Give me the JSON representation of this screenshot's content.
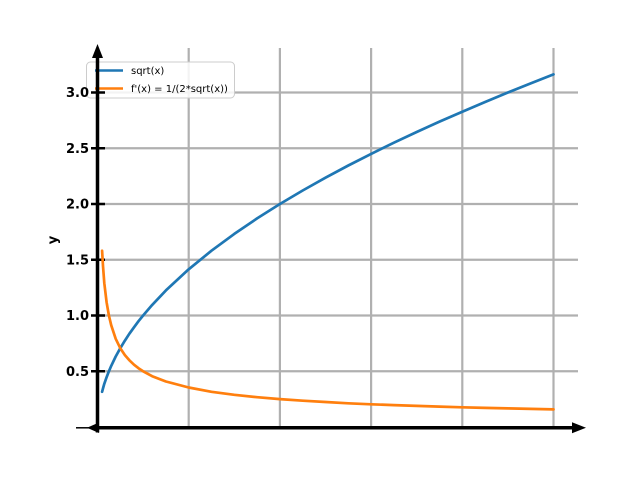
{
  "figure": {
    "background": "#ffffff",
    "axis_color": "#000000",
    "grid_color": "#b0b0b0",
    "legend": {
      "border_color": "#cccccc",
      "background": "#ffffff"
    }
  },
  "chart_data": {
    "type": "line",
    "title": "",
    "xlabel": "",
    "ylabel": "y",
    "xlim": [
      0,
      10.7
    ],
    "ylim": [
      0,
      3.45
    ],
    "xticks": [
      2,
      4,
      6,
      8,
      10
    ],
    "yticks": [
      0.5,
      1.0,
      1.5,
      2.0,
      2.5,
      3.0
    ],
    "ytick_labels": [
      "0.5",
      "1.0",
      "1.5",
      "2.0",
      "2.5",
      "3.0"
    ],
    "grid": true,
    "legend_position": "upper left",
    "x": [
      0.1,
      0.12,
      0.15,
      0.2,
      0.25,
      0.3,
      0.4,
      0.5,
      0.6,
      0.7,
      0.8,
      0.9,
      1.0,
      1.2,
      1.5,
      2.0,
      2.5,
      3.0,
      3.5,
      4.0,
      4.5,
      5.0,
      5.5,
      6.0,
      6.5,
      7.0,
      7.5,
      8.0,
      8.5,
      9.0,
      9.5,
      10.0
    ],
    "series": [
      {
        "name": "sqrt(x)",
        "color": "#1f77b4",
        "values": [
          0.316,
          0.346,
          0.387,
          0.447,
          0.5,
          0.548,
          0.632,
          0.707,
          0.775,
          0.837,
          0.894,
          0.949,
          1.0,
          1.095,
          1.225,
          1.414,
          1.581,
          1.732,
          1.871,
          2.0,
          2.121,
          2.236,
          2.345,
          2.449,
          2.55,
          2.646,
          2.739,
          2.828,
          2.915,
          3.0,
          3.082,
          3.162
        ]
      },
      {
        "name": "f'(x) = 1/(2*sqrt(x))",
        "color": "#ff7f0e",
        "values": [
          1.581,
          1.443,
          1.291,
          1.118,
          1.0,
          0.913,
          0.791,
          0.707,
          0.645,
          0.598,
          0.559,
          0.527,
          0.5,
          0.456,
          0.408,
          0.354,
          0.316,
          0.289,
          0.267,
          0.25,
          0.236,
          0.224,
          0.213,
          0.204,
          0.196,
          0.189,
          0.183,
          0.177,
          0.171,
          0.167,
          0.162,
          0.158
        ]
      }
    ]
  }
}
